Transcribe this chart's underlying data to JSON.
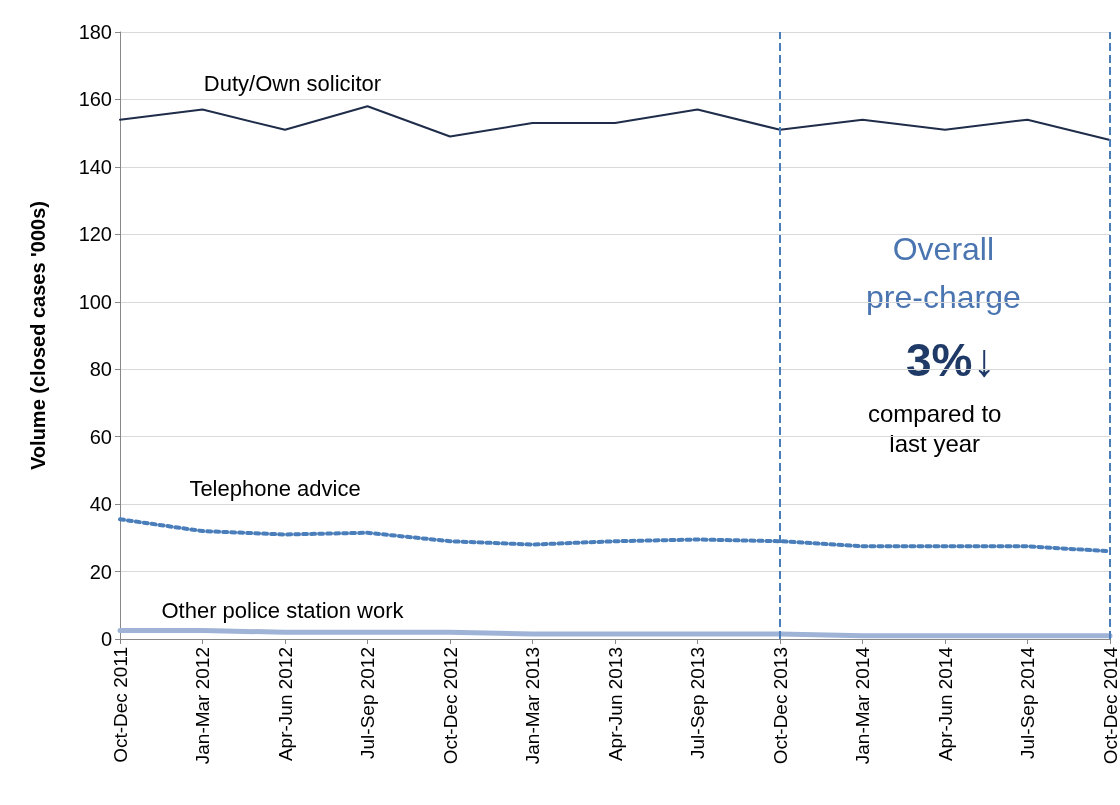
{
  "chart_data": {
    "type": "line",
    "ylabel": "Volume (closed cases '000s)",
    "categories": [
      "Oct-Dec 2011",
      "Jan-Mar 2012",
      "Apr-Jun 2012",
      "Jul-Sep 2012",
      "Oct-Dec 2012",
      "Jan-Mar 2013",
      "Apr-Jun 2013",
      "Jul-Sep 2013",
      "Oct-Dec 2013",
      "Jan-Mar 2014",
      "Apr-Jun 2014",
      "Jul-Sep 2014",
      "Oct-Dec 2014"
    ],
    "series": [
      {
        "name": "Duty/Own solicitor",
        "color": "#1f2d4a",
        "line_style": "solid",
        "values": [
          154,
          157,
          151,
          158,
          149,
          153,
          153,
          157,
          151,
          154,
          151,
          154,
          148
        ]
      },
      {
        "name": "Telephone advice",
        "color": "#4a7ebb",
        "line_style": "dotted",
        "values": [
          35.5,
          32,
          31,
          31.5,
          29,
          28,
          29,
          29.5,
          29,
          27.5,
          27.5,
          27.5,
          26
        ]
      },
      {
        "name": "Other police station work",
        "color": "#9fb3d6",
        "line_style": "solid",
        "values": [
          2.5,
          2.5,
          2,
          2,
          2,
          1.5,
          1.5,
          1.5,
          1.5,
          1,
          1,
          1,
          1
        ]
      }
    ],
    "ylim": [
      0,
      180
    ],
    "yticks": [
      0,
      20,
      40,
      60,
      80,
      100,
      120,
      140,
      160,
      180
    ],
    "grid": "y",
    "marker": "none",
    "ref_lines": [
      {
        "axis": "x",
        "value": "Oct-Dec 2013",
        "color": "#4a7ebb",
        "line_style": "dashed"
      },
      {
        "axis": "x",
        "value": "Oct-Dec 2014",
        "color": "#4a7ebb",
        "line_style": "dashed"
      }
    ],
    "annotations": [
      "Overall\npre-charge",
      "3%↓",
      "compared to\nlast year"
    ]
  }
}
